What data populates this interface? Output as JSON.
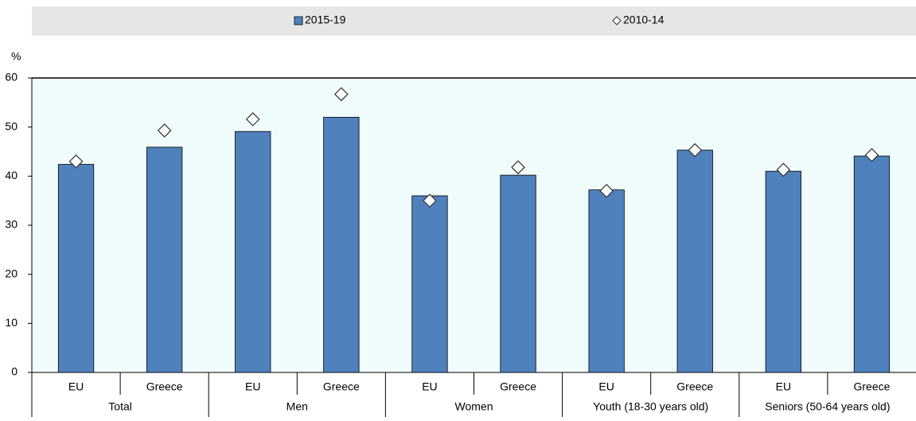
{
  "chart_data": {
    "type": "bar",
    "y_label": "%",
    "groups": [
      "Total",
      "Men",
      "Women",
      "Youth (18-30 years old)",
      "Seniors (50-64 years old)"
    ],
    "categories": [
      "EU",
      "Greece",
      "EU",
      "Greece",
      "EU",
      "Greece",
      "EU",
      "Greece",
      "EU",
      "Greece"
    ],
    "series": [
      {
        "name": "2015-19",
        "type": "bar",
        "color": "#4f81bd",
        "values": [
          42.4,
          45.9,
          49.1,
          52.0,
          36.0,
          40.2,
          37.2,
          45.3,
          41.0,
          44.1
        ]
      },
      {
        "name": "2010-14",
        "type": "marker",
        "color": "#ffffff",
        "values": [
          43.0,
          49.3,
          51.6,
          56.7,
          35.0,
          41.8,
          37.0,
          45.3,
          41.3,
          44.3
        ]
      }
    ],
    "ylim": [
      0,
      60
    ],
    "yticks": [
      0,
      10,
      20,
      30,
      40,
      50,
      60
    ],
    "grid": false
  }
}
